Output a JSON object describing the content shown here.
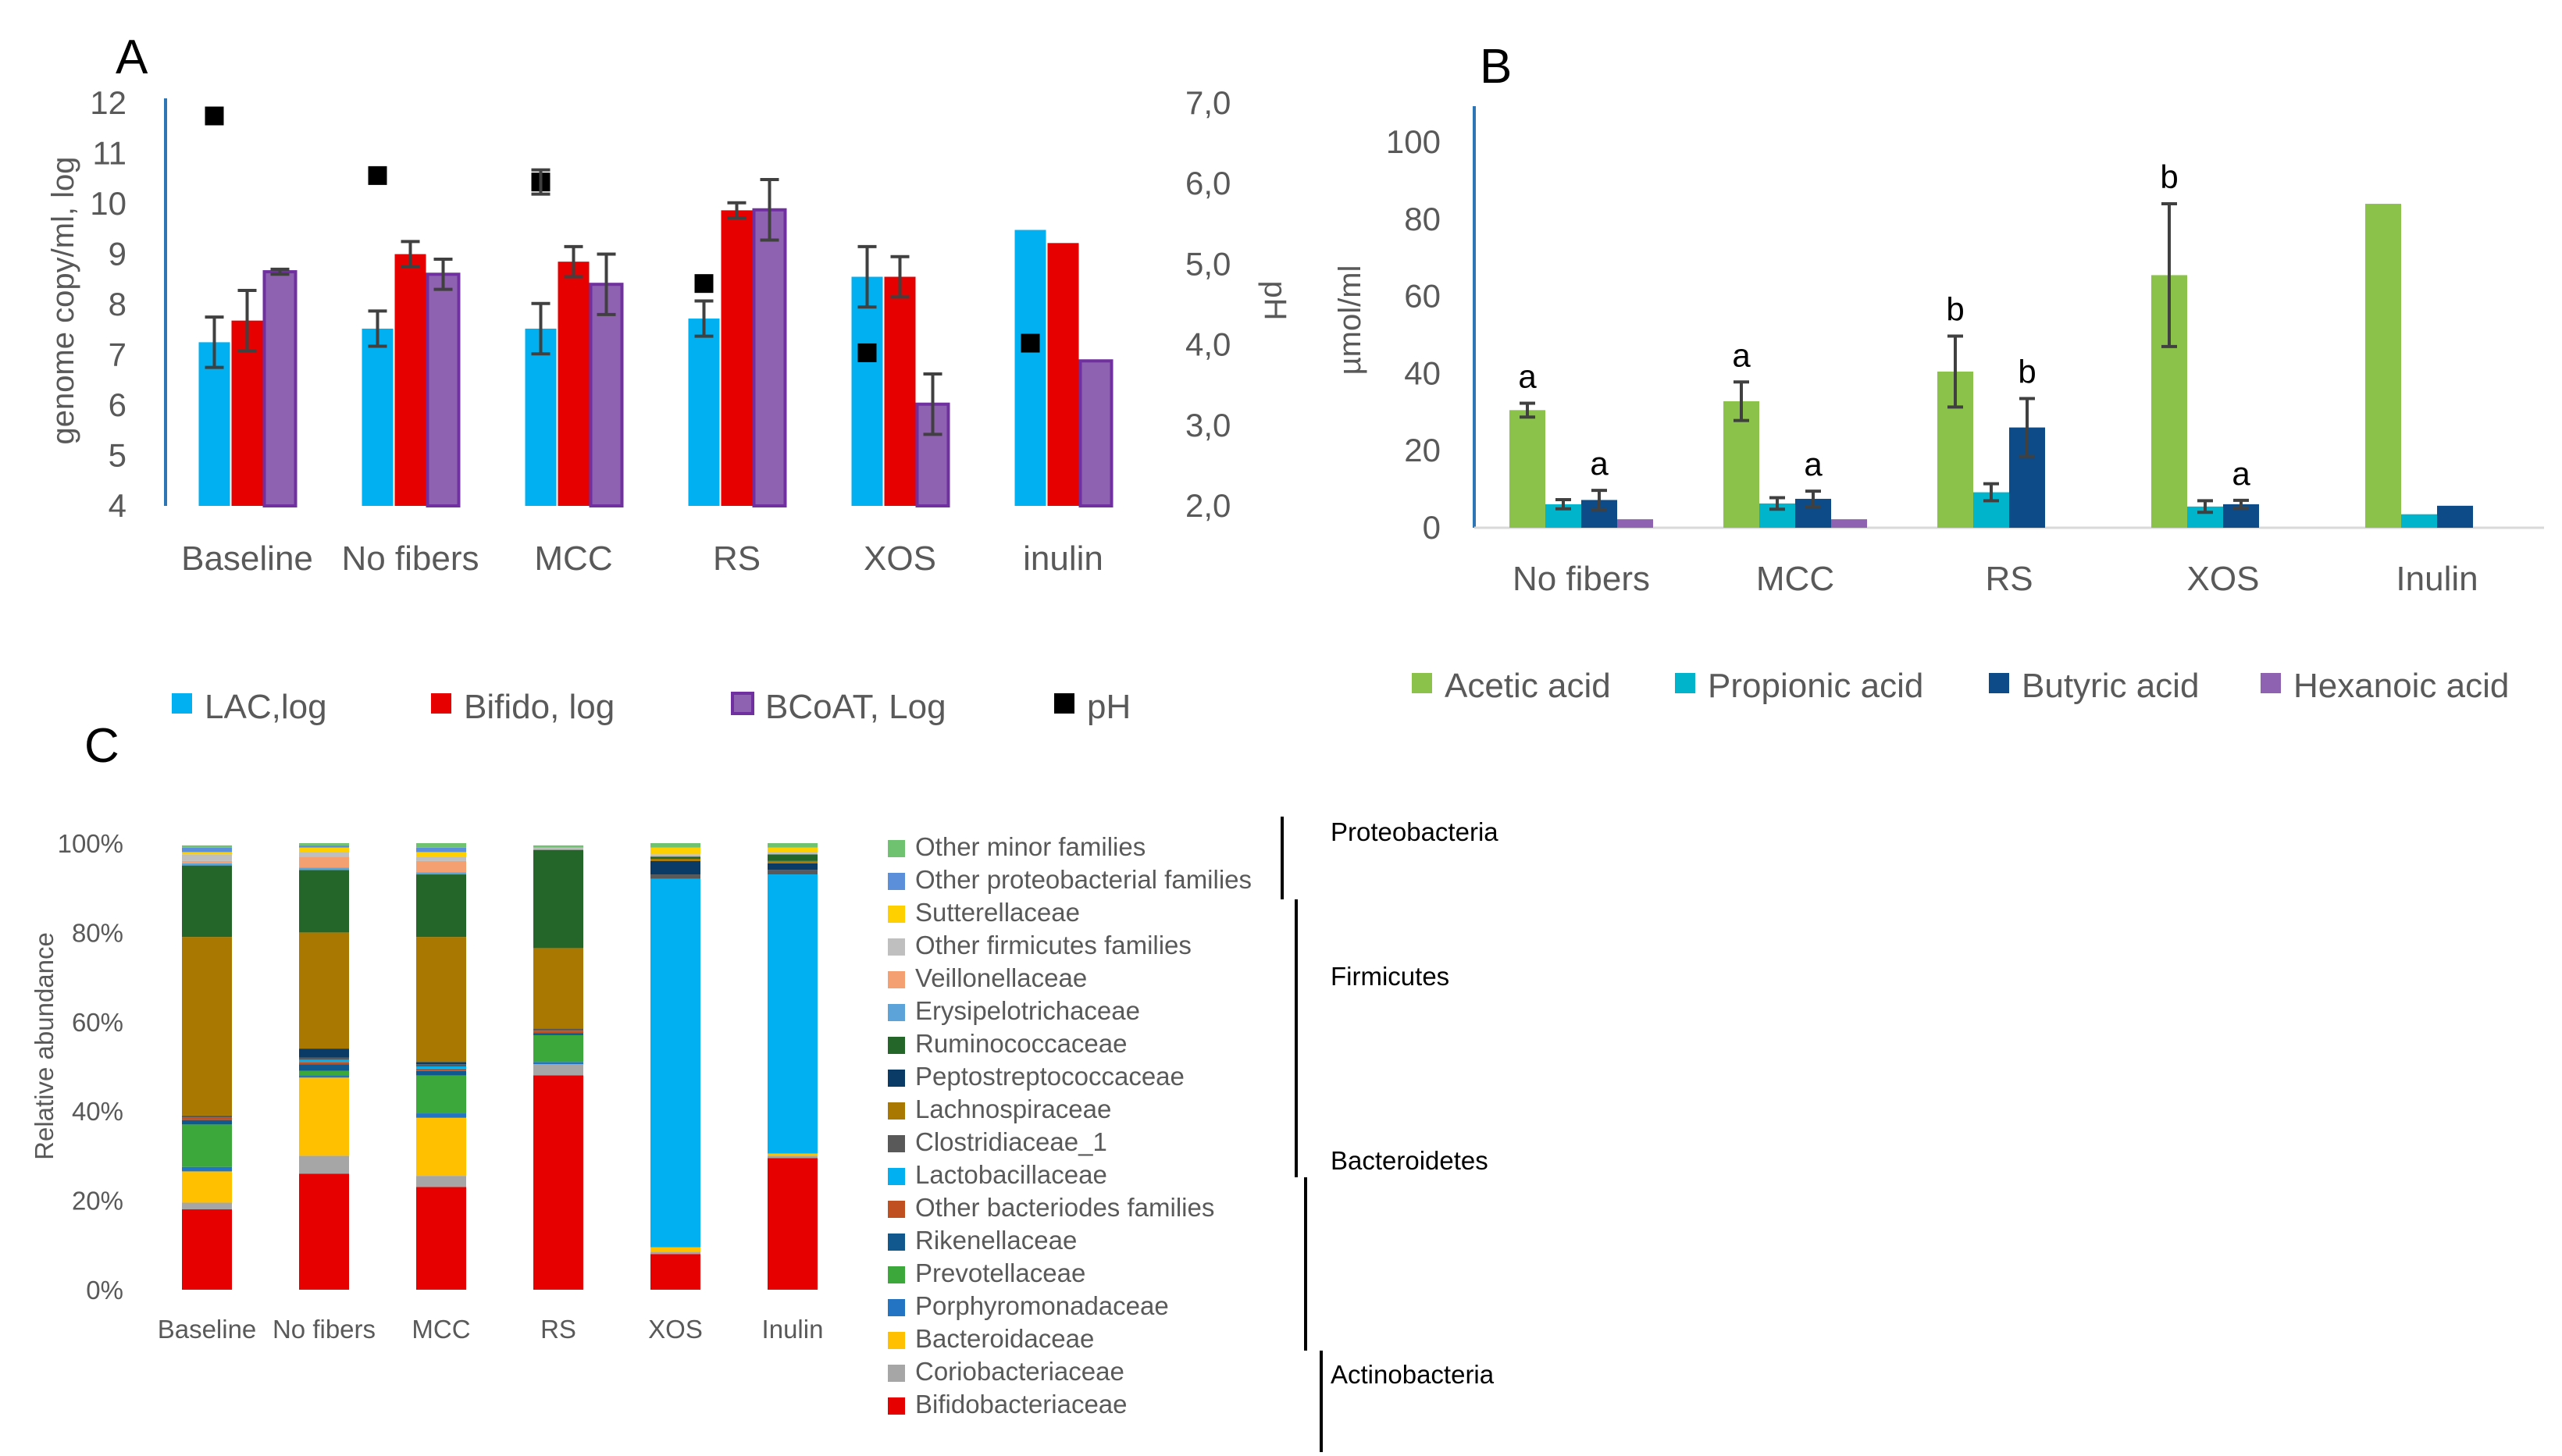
{
  "colors": {
    "lac": "#00b0f0",
    "bifido": "#e60000",
    "bcoat": "#8e62b0",
    "bcoat_border": "#7030a0",
    "ph": "#000000",
    "acetic": "#8bc34a",
    "propionic": "#00b4cc",
    "butyric": "#0c4b87",
    "hexanoic": "#8e62b0",
    "axis_blue": "#2e75b6",
    "text": "#595959",
    "error": "#404040"
  },
  "chart_data": [
    {
      "panel": "A",
      "type": "bar",
      "categories": [
        "Baseline",
        "No fibers",
        "MCC",
        "RS",
        "XOS",
        "inulin"
      ],
      "ylabel": "genome copy/ml, log",
      "ylim": [
        4,
        12
      ],
      "yticks": [
        "4",
        "5",
        "6",
        "7",
        "8",
        "9",
        "10",
        "11",
        "12"
      ],
      "y2label": "pH",
      "y2lim": [
        2.0,
        7.0
      ],
      "y2ticks": [
        "2,0",
        "3,0",
        "4,0",
        "5,0",
        "6,0",
        "7,0"
      ],
      "series": [
        {
          "name": "LAC,log",
          "color_key": "lac",
          "values": [
            7.25,
            7.52,
            7.52,
            7.72,
            8.55,
            9.48
          ],
          "errors": [
            0.5,
            0.35,
            0.5,
            0.35,
            0.6,
            0
          ]
        },
        {
          "name": "Bifido, log",
          "color_key": "bifido",
          "values": [
            7.68,
            9.0,
            8.85,
            9.87,
            8.55,
            9.22
          ],
          "errors": [
            0.6,
            0.25,
            0.3,
            0.15,
            0.4,
            0
          ]
        },
        {
          "name": "BCoAT, Log",
          "color_key": "bcoat",
          "values": [
            8.65,
            8.6,
            8.4,
            9.88,
            6.02,
            6.88
          ],
          "errors": [
            0.05,
            0.3,
            0.6,
            0.6,
            0.6,
            0
          ]
        }
      ],
      "ph": {
        "name": "pH",
        "values": [
          6.84,
          6.1,
          6.02,
          4.76,
          3.9,
          4.02
        ],
        "errors": [
          0,
          0,
          0.15,
          0,
          0,
          0
        ]
      },
      "legend": [
        "LAC,log",
        "Bifido, log",
        "BCoAT, Log",
        "pH"
      ]
    },
    {
      "panel": "B",
      "type": "bar",
      "categories": [
        "No fibers",
        "MCC",
        "RS",
        "XOS",
        "Inulin"
      ],
      "ylabel": "µmol/ml",
      "ylim": [
        0,
        100
      ],
      "yticks": [
        "0",
        "20",
        "40",
        "60",
        "80",
        "100"
      ],
      "series": [
        {
          "name": "Acetic acid",
          "color_key": "acetic",
          "values": [
            30.5,
            32.8,
            40.5,
            65.5,
            84
          ],
          "errors": [
            1.8,
            5,
            9.2,
            18.5,
            0
          ],
          "letters": [
            "a",
            "a",
            "b",
            "b",
            ""
          ]
        },
        {
          "name": "Propionic acid",
          "color_key": "propionic",
          "values": [
            6.1,
            6.3,
            9.2,
            5.5,
            3.5
          ],
          "errors": [
            1.2,
            1.5,
            2.2,
            1.5,
            0
          ],
          "letters": [
            "",
            "",
            "",
            "",
            ""
          ]
        },
        {
          "name": "Butyric acid",
          "color_key": "butyric",
          "values": [
            7.2,
            7.5,
            26,
            6.1,
            5.7
          ],
          "errors": [
            2.5,
            2,
            7.5,
            1,
            0
          ],
          "letters": [
            "a",
            "a",
            "b",
            "a",
            ""
          ]
        },
        {
          "name": "Hexanoic acid",
          "color_key": "hexanoic",
          "values": [
            2.2,
            2.2,
            0,
            0,
            0
          ],
          "errors": [
            0,
            0,
            0,
            0,
            0
          ],
          "letters": [
            "",
            "",
            "",
            "",
            ""
          ]
        }
      ],
      "legend": [
        "Acetic acid",
        "Propionic acid",
        "Butyric acid",
        "Hexanoic acid"
      ]
    },
    {
      "panel": "C",
      "type": "bar",
      "stacked": true,
      "categories": [
        "Baseline",
        "No fibers",
        "MCC",
        "RS",
        "XOS",
        "Inulin"
      ],
      "ylabel": "Relative abundance",
      "ylim": [
        0,
        100
      ],
      "yticks": [
        "0%",
        "20%",
        "40%",
        "60%",
        "80%",
        "100%"
      ],
      "series": [
        {
          "name": "Bifidobacteriaceae",
          "color": "#e60000",
          "values": [
            18,
            26,
            23,
            48,
            8,
            29.5
          ]
        },
        {
          "name": "Coriobacteriaceae",
          "color": "#a6a6a6",
          "values": [
            1.5,
            4,
            2.5,
            2.5,
            0.5,
            0.5
          ]
        },
        {
          "name": "Bacteroidaceae",
          "color": "#ffc000",
          "values": [
            7,
            17.5,
            13,
            0,
            1,
            0.5
          ]
        },
        {
          "name": "Porphyromonadaceae",
          "color": "#2474c4",
          "values": [
            1,
            0.5,
            1,
            0.5,
            0,
            0
          ]
        },
        {
          "name": "Prevotellaceae",
          "color": "#3ca83c",
          "values": [
            9.5,
            1,
            8.5,
            6,
            0,
            0
          ]
        },
        {
          "name": "Rikenellaceae",
          "color": "#11588f",
          "values": [
            1,
            1.5,
            1,
            0.5,
            0,
            0
          ]
        },
        {
          "name": "Other bacteriodes families",
          "color": "#c0501f",
          "values": [
            0.5,
            0.5,
            0.5,
            0.5,
            0,
            0
          ]
        },
        {
          "name": "Lactobacillaceae",
          "color": "#00b0f0",
          "values": [
            0,
            0.5,
            0.5,
            0,
            82.5,
            62.5
          ]
        },
        {
          "name": "Clostridiaceae_1",
          "color": "#595959",
          "values": [
            0.5,
            0.5,
            0.5,
            0.5,
            1,
            1
          ]
        },
        {
          "name": "Peptostreptococcaceae",
          "color": "#0a3a66",
          "values": [
            0,
            2,
            0.5,
            0,
            3,
            1.5
          ]
        },
        {
          "name": "Lachnospiraceae",
          "color": "#a87800",
          "values": [
            40,
            26,
            28,
            18,
            0.5,
            0.5
          ]
        },
        {
          "name": "Ruminococcaceae",
          "color": "#24662a",
          "values": [
            16,
            14,
            14,
            22,
            0.5,
            1.5
          ]
        },
        {
          "name": "Erysipelotrichaceae",
          "color": "#5ba3d9",
          "values": [
            0.5,
            0.5,
            0.5,
            0,
            0,
            0
          ]
        },
        {
          "name": "Veillonellaceae",
          "color": "#f4a071",
          "values": [
            0.5,
            2.5,
            2.5,
            0,
            0,
            0
          ]
        },
        {
          "name": "Other firmicutes families",
          "color": "#bfbfbf",
          "values": [
            1.5,
            1,
            1,
            0.5,
            0.5,
            0.5
          ]
        },
        {
          "name": "Sutterellaceae",
          "color": "#ffd000",
          "values": [
            0.5,
            1,
            1,
            0,
            1.5,
            1
          ]
        },
        {
          "name": "Other proteobacterial families",
          "color": "#5b8fd9",
          "values": [
            1,
            0.5,
            1,
            0,
            0,
            0
          ]
        },
        {
          "name": "Other minor families",
          "color": "#6fc26f",
          "values": [
            0.5,
            0.5,
            1,
            0.5,
            1,
            1
          ]
        }
      ],
      "legend_order": [
        "Other minor families",
        "Other proteobacterial families",
        "Sutterellaceae",
        "Other firmicutes families",
        "Veillonellaceae",
        "Erysipelotrichaceae",
        "Ruminococcaceae",
        "Peptostreptococcaceae",
        "Lachnospiraceae",
        "Clostridiaceae_1",
        "Lactobacillaceae",
        "Other bacteriodes families",
        "Rikenellaceae",
        "Prevotellaceae",
        "Porphyromonadaceae",
        "Bacteroidaceae",
        "Coriobacteriaceae",
        "Bifidobacteriaceae"
      ],
      "phyla": [
        "Proteobacteria",
        "Firmicutes",
        "Bacteroidetes",
        "Actinobacteria"
      ]
    }
  ],
  "panel_labels": [
    "A",
    "B",
    "C"
  ]
}
